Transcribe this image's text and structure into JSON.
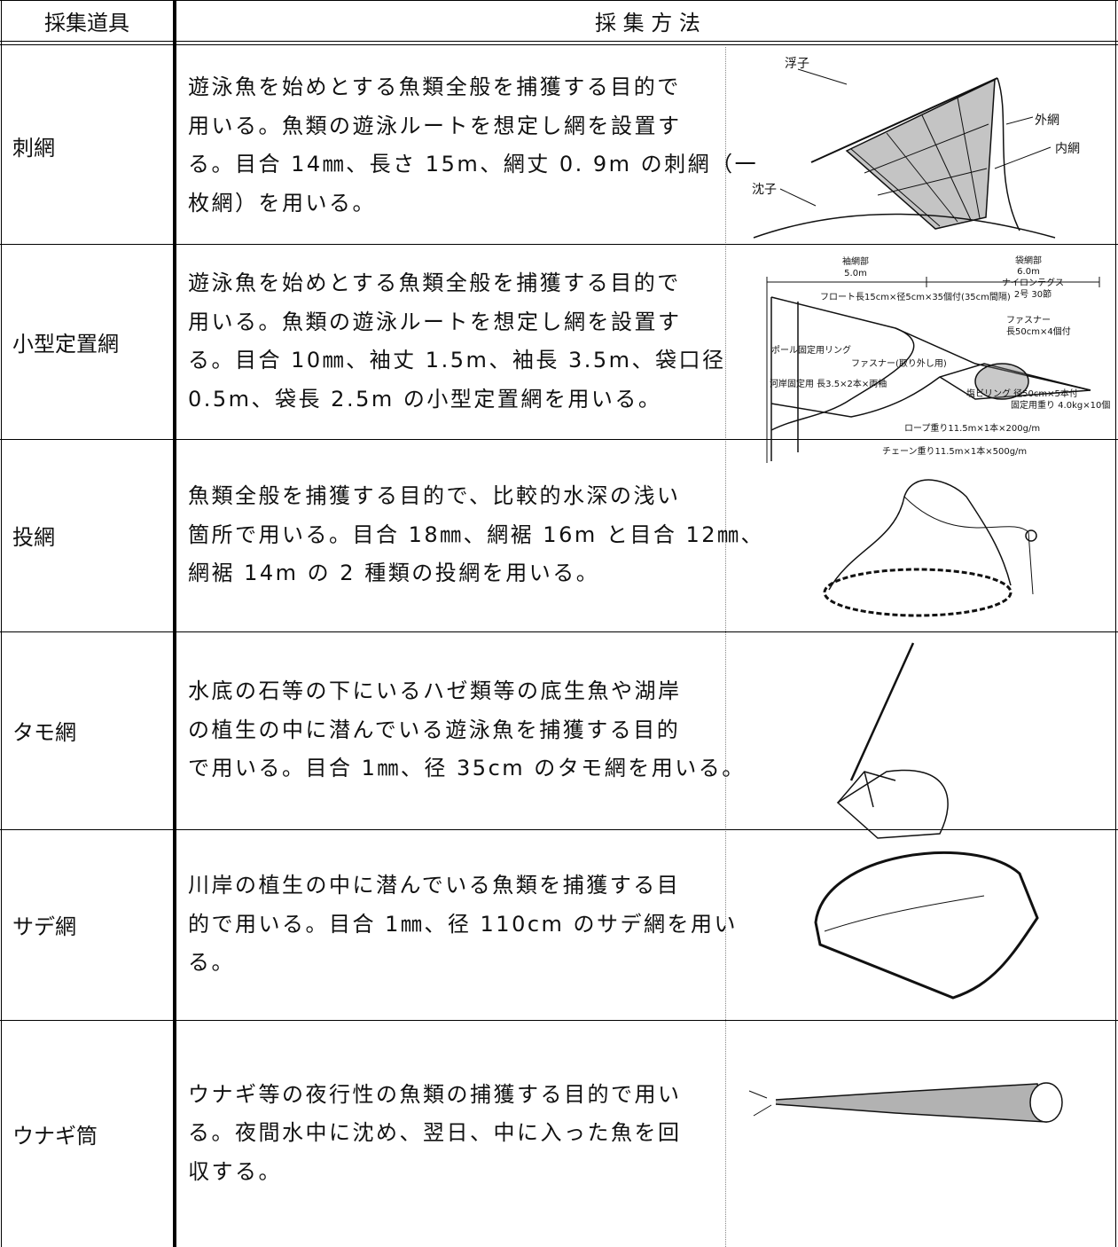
{
  "header": {
    "tool": "採集道具",
    "method": "採 集 方 法"
  },
  "rows": [
    {
      "tool": "刺網",
      "description": [
        "遊泳魚を始めとする魚類全般を捕獲する目的で",
        "用いる。魚類の遊泳ルートを想定し網を設置す",
        "る。目合 14㎜、長さ 15m、網丈 0. 9m の刺網（一",
        "枚網）を用いる。"
      ]
    },
    {
      "tool": "小型定置網",
      "description": [
        "遊泳魚を始めとする魚類全般を捕獲する目的で",
        "用いる。魚類の遊泳ルートを想定し網を設置す",
        "る。目合 10㎜、袖丈 1.5m、袖長 3.5m、袋口径",
        "0.5m、袋長 2.5m の小型定置網を用いる。"
      ]
    },
    {
      "tool": "投網",
      "description": [
        "魚類全般を捕獲する目的で、比較的水深の浅い",
        "箇所で用いる。目合 18㎜、網裾 16m と目合 12㎜、",
        "網裾 14m の 2 種類の投網を用いる。"
      ]
    },
    {
      "tool": "タモ網",
      "description": [
        "水底の石等の下にいるハゼ類等の底生魚や湖岸",
        "の植生の中に潜んでいる遊泳魚を捕獲する目的",
        "で用いる。目合 1㎜、径 35cm のタモ網を用いる。"
      ]
    },
    {
      "tool": "サデ網",
      "description": [
        "川岸の植生の中に潜んでいる魚類を捕獲する目",
        "的で用いる。目合 1㎜、径 110cm のサデ網を用い",
        "る。"
      ]
    },
    {
      "tool": "ウナギ筒",
      "description": [
        "ウナギ等の夜行性の魚類の捕獲する目的で用い",
        "る。夜間水中に沈め、翌日、中に入った魚を回",
        "収する。"
      ]
    }
  ],
  "figures": {
    "gill_net_labels": [
      "浮子",
      "外網",
      "内網",
      "沈子"
    ],
    "set_net_labels": [
      "袖網部",
      "5.0m",
      "袋網部",
      "6.0m",
      "ナイロンテグス",
      "2号 30節",
      "フロート長15cm×径5cm×35個付(35cm間隔)",
      "ファスナー",
      "長50cm×4個付",
      "ポール固定用リング",
      "ファスナー(取り外し用)",
      "河岸固定用 長3.5×2本×両袖",
      "塩ビリング 径50cm×5本付",
      "固定用重り 4.0kg×10個",
      "ロープ重り11.5m×1本×200g/m",
      "チェーン重り11.5m×1本×500g/m"
    ]
  }
}
